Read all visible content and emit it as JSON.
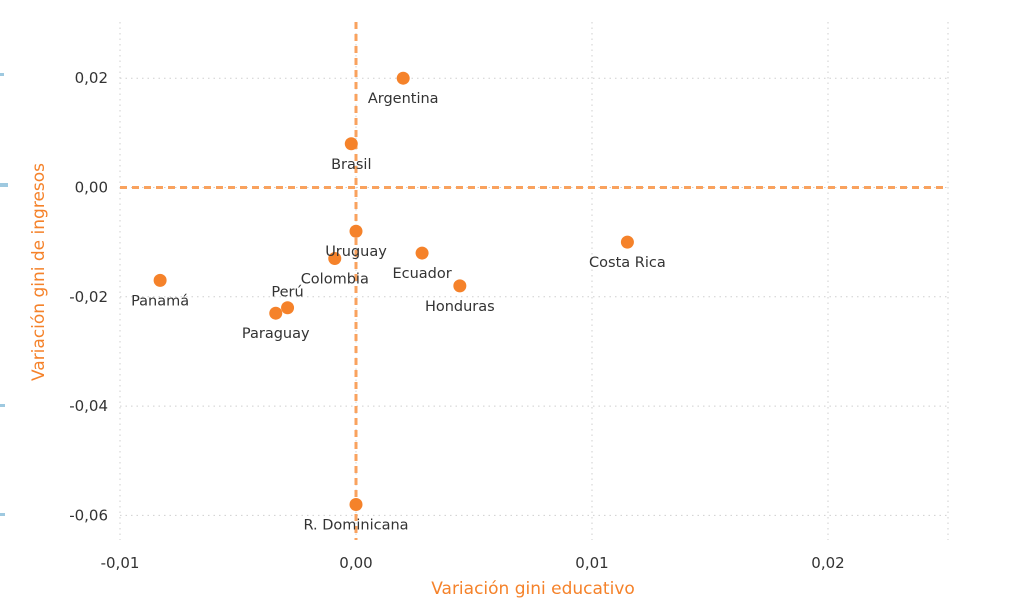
{
  "chart_data": {
    "type": "scatter",
    "xlabel": "Variación gini educativo",
    "ylabel": "Variación gini de ingresos",
    "xlim": [
      -0.01,
      0.025
    ],
    "ylim": [
      -0.063,
      0.031
    ],
    "x_ticks": [
      {
        "value": -0.01,
        "label": "-0,01"
      },
      {
        "value": 0.0,
        "label": "0,00"
      },
      {
        "value": 0.01,
        "label": "0,01"
      },
      {
        "value": 0.02,
        "label": "0,02"
      }
    ],
    "y_ticks": [
      {
        "value": 0.02,
        "label": "0,02"
      },
      {
        "value": 0.0,
        "label": "0,00"
      },
      {
        "value": -0.02,
        "label": "-0,02"
      },
      {
        "value": -0.04,
        "label": "-0,04"
      },
      {
        "value": -0.06,
        "label": "-0,06"
      }
    ],
    "grid": "dotted",
    "reference_lines": {
      "x": 0.0,
      "y": 0.0,
      "style": "dashed"
    },
    "point_color": "#f5822a",
    "axis_title_color": "#f5822a",
    "points": [
      {
        "label": "Argentina",
        "x": 0.002,
        "y": 0.02,
        "label_pos": "below"
      },
      {
        "label": "Brasil",
        "x": -0.0002,
        "y": 0.008,
        "label_pos": "below"
      },
      {
        "label": "Uruguay",
        "x": 0.0,
        "y": -0.008,
        "label_pos": "below"
      },
      {
        "label": "Colombia",
        "x": -0.0009,
        "y": -0.013,
        "label_pos": "below"
      },
      {
        "label": "Ecuador",
        "x": 0.0028,
        "y": -0.012,
        "label_pos": "below"
      },
      {
        "label": "Costa Rica",
        "x": 0.0115,
        "y": -0.01,
        "label_pos": "below"
      },
      {
        "label": "Honduras",
        "x": 0.0044,
        "y": -0.018,
        "label_pos": "below"
      },
      {
        "label": "Panamá",
        "x": -0.0083,
        "y": -0.017,
        "label_pos": "below"
      },
      {
        "label": "Perú",
        "x": -0.0029,
        "y": -0.022,
        "label_pos": "above"
      },
      {
        "label": "Paraguay",
        "x": -0.0034,
        "y": -0.023,
        "label_pos": "below"
      },
      {
        "label": "R. Dominicana",
        "x": 0.0,
        "y": -0.058,
        "label_pos": "below"
      }
    ]
  }
}
